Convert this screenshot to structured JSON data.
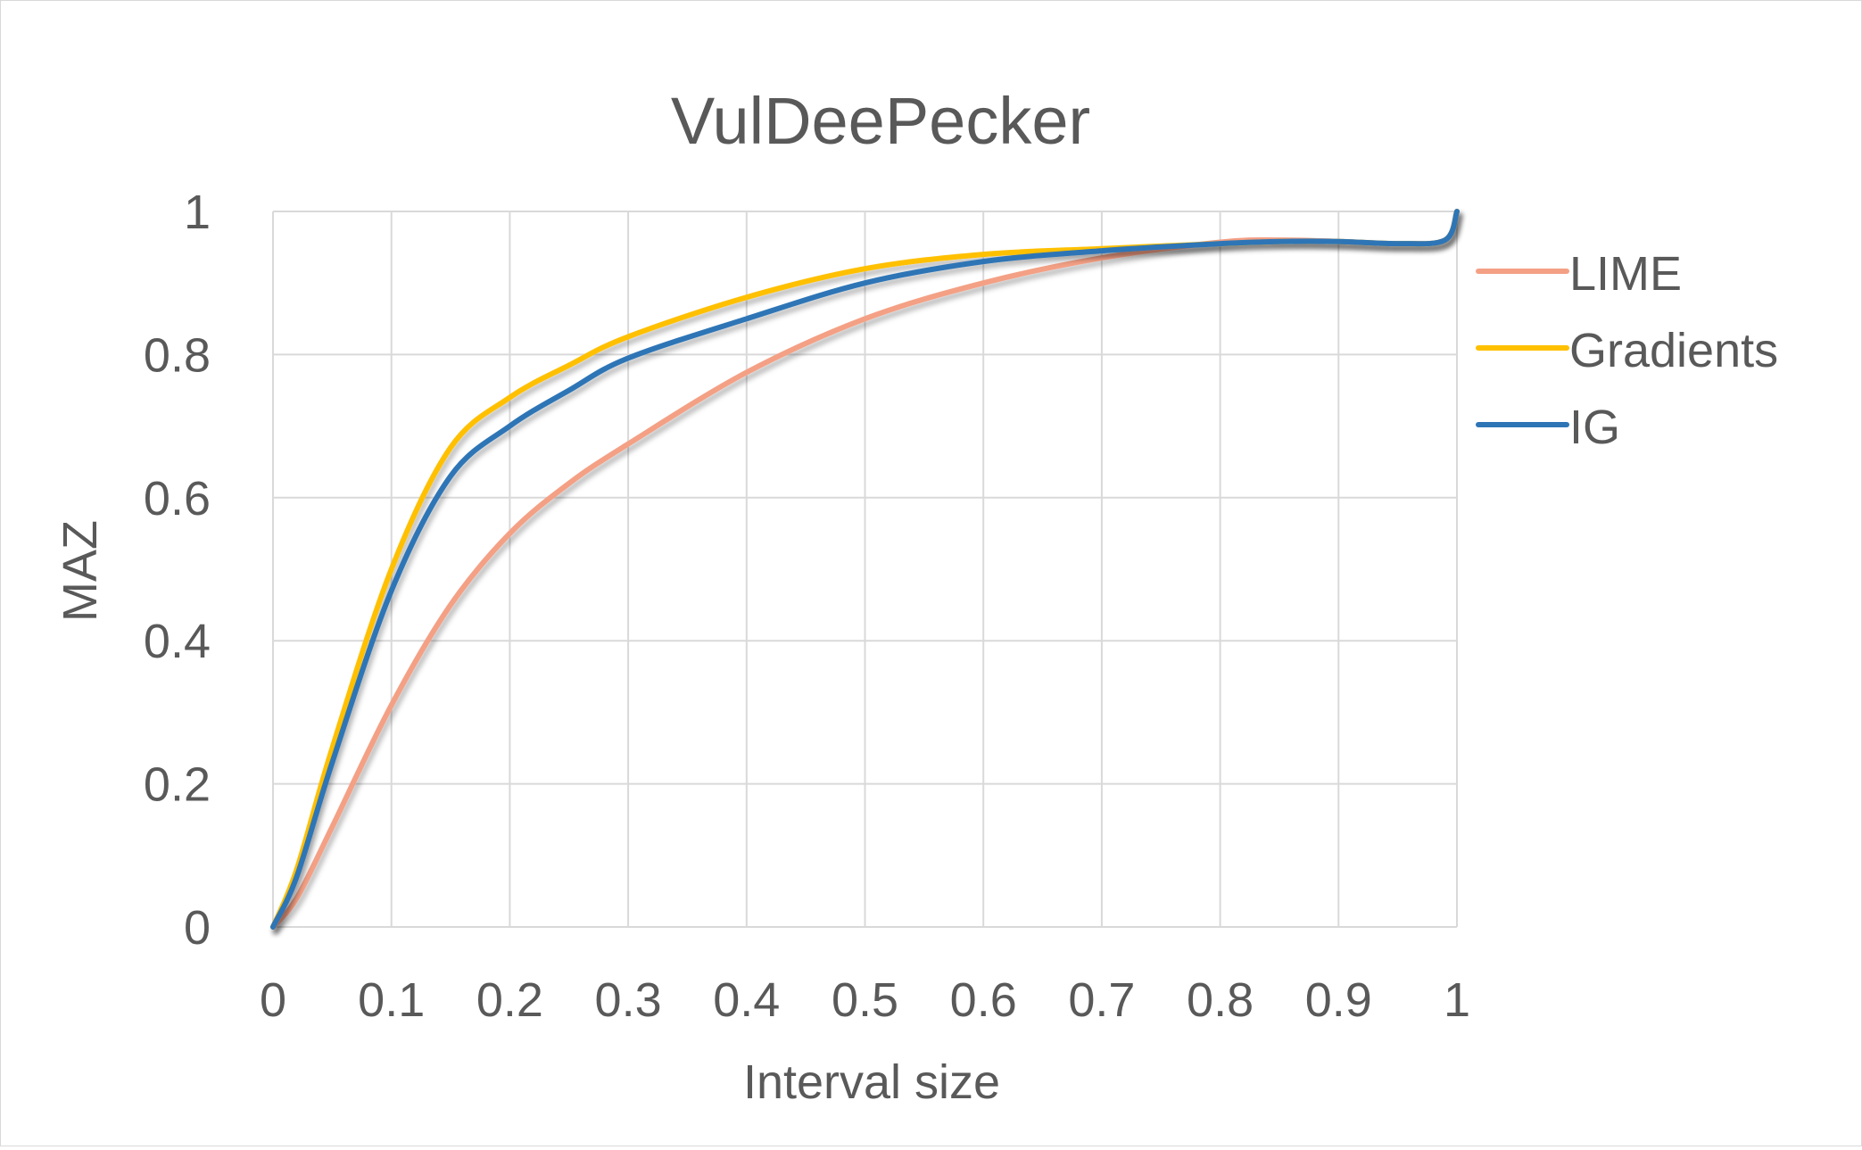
{
  "chart_data": {
    "type": "line",
    "title": "VulDeePecker",
    "xlabel": "Interval size",
    "ylabel": "MAZ",
    "xlim": [
      0,
      1
    ],
    "ylim": [
      0,
      1
    ],
    "x_ticks": [
      "0",
      "0.1",
      "0.2",
      "0.3",
      "0.4",
      "0.5",
      "0.6",
      "0.7",
      "0.8",
      "0.9",
      "1"
    ],
    "y_ticks": [
      "0",
      "0.2",
      "0.4",
      "0.6",
      "0.8",
      "1"
    ],
    "grid": true,
    "legend_position": "right",
    "series": [
      {
        "name": "LIME",
        "color": "#F4A085",
        "points": [
          [
            0,
            0
          ],
          [
            0.02,
            0.04
          ],
          [
            0.05,
            0.14
          ],
          [
            0.1,
            0.31
          ],
          [
            0.15,
            0.45
          ],
          [
            0.2,
            0.55
          ],
          [
            0.25,
            0.62
          ],
          [
            0.3,
            0.675
          ],
          [
            0.4,
            0.775
          ],
          [
            0.5,
            0.85
          ],
          [
            0.6,
            0.9
          ],
          [
            0.7,
            0.935
          ],
          [
            0.8,
            0.957
          ],
          [
            0.85,
            0.96
          ],
          [
            0.9,
            0.958
          ],
          [
            0.95,
            0.955
          ],
          [
            0.99,
            0.96
          ],
          [
            1.0,
            1.0
          ]
        ]
      },
      {
        "name": "Gradients",
        "color": "#FFC000",
        "points": [
          [
            0,
            0
          ],
          [
            0.02,
            0.08
          ],
          [
            0.05,
            0.25
          ],
          [
            0.1,
            0.5
          ],
          [
            0.15,
            0.67
          ],
          [
            0.2,
            0.74
          ],
          [
            0.25,
            0.785
          ],
          [
            0.3,
            0.825
          ],
          [
            0.4,
            0.88
          ],
          [
            0.5,
            0.92
          ],
          [
            0.6,
            0.94
          ],
          [
            0.7,
            0.948
          ],
          [
            0.8,
            0.955
          ],
          [
            0.85,
            0.958
          ],
          [
            0.9,
            0.958
          ],
          [
            0.95,
            0.955
          ],
          [
            0.99,
            0.96
          ],
          [
            1.0,
            1.0
          ]
        ]
      },
      {
        "name": "IG",
        "color": "#2E75B6",
        "points": [
          [
            0,
            0
          ],
          [
            0.02,
            0.07
          ],
          [
            0.05,
            0.23
          ],
          [
            0.1,
            0.47
          ],
          [
            0.15,
            0.63
          ],
          [
            0.2,
            0.7
          ],
          [
            0.25,
            0.75
          ],
          [
            0.3,
            0.795
          ],
          [
            0.4,
            0.85
          ],
          [
            0.5,
            0.9
          ],
          [
            0.6,
            0.93
          ],
          [
            0.7,
            0.945
          ],
          [
            0.8,
            0.955
          ],
          [
            0.85,
            0.958
          ],
          [
            0.9,
            0.958
          ],
          [
            0.95,
            0.955
          ],
          [
            0.99,
            0.96
          ],
          [
            1.0,
            1.0
          ]
        ]
      }
    ]
  }
}
